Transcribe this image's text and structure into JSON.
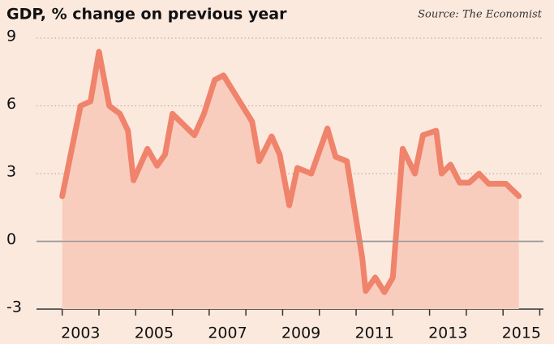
{
  "chart_data": {
    "type": "line",
    "title": "GDP, % change on previous year",
    "source": "Source: The Economist",
    "x": [
      2003.0,
      2003.5,
      2003.77,
      2004.0,
      2004.28,
      2004.57,
      2004.79,
      2004.94,
      2005.32,
      2005.58,
      2005.8,
      2006.0,
      2006.6,
      2006.86,
      2007.15,
      2007.39,
      2008.17,
      2008.36,
      2008.7,
      2008.92,
      2009.18,
      2009.4,
      2009.78,
      2010.22,
      2010.44,
      2010.75,
      2011.17,
      2011.26,
      2011.52,
      2011.77,
      2012.0,
      2012.27,
      2012.6,
      2012.82,
      2013.18,
      2013.33,
      2013.57,
      2013.82,
      2014.08,
      2014.35,
      2014.61,
      2015.08,
      2015.43
    ],
    "series": [
      {
        "name": "GDP",
        "color": "#f0836b",
        "fill": "#f9cdbe",
        "values": [
          2.0,
          6.0,
          6.2,
          8.4,
          6.0,
          5.65,
          4.9,
          2.7,
          4.1,
          3.35,
          3.85,
          5.65,
          4.7,
          5.65,
          7.15,
          7.35,
          5.3,
          3.55,
          4.65,
          3.85,
          1.6,
          3.25,
          3.0,
          5.0,
          3.75,
          3.55,
          -0.75,
          -2.2,
          -1.6,
          -2.25,
          -1.6,
          4.1,
          3.0,
          4.7,
          4.9,
          3.0,
          3.4,
          2.6,
          2.6,
          3.0,
          2.55,
          2.55,
          2.0
        ]
      }
    ],
    "xlim": [
      2002.3,
      2016.1
    ],
    "xticks": [
      2003,
      2005,
      2007,
      2009,
      2011,
      2013,
      2015
    ],
    "ylim": [
      -3,
      9
    ],
    "yticks": [
      -3,
      0,
      3,
      6,
      9
    ],
    "grid": true
  }
}
